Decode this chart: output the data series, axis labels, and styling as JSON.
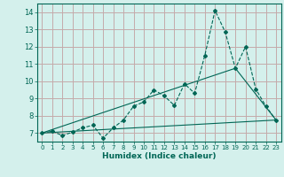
{
  "xlabel": "Humidex (Indice chaleur)",
  "bg_color": "#d4f0ec",
  "grid_color": "#c4aaaa",
  "line_color": "#006655",
  "xlim": [
    -0.5,
    23.5
  ],
  "ylim": [
    6.5,
    14.5
  ],
  "xticks": [
    0,
    1,
    2,
    3,
    4,
    5,
    6,
    7,
    8,
    9,
    10,
    11,
    12,
    13,
    14,
    15,
    16,
    17,
    18,
    19,
    20,
    21,
    22,
    23
  ],
  "yticks": [
    7,
    8,
    9,
    10,
    11,
    12,
    13,
    14
  ],
  "line1_x": [
    0,
    1,
    2,
    3,
    4,
    5,
    6,
    7,
    8,
    9,
    10,
    11,
    12,
    13,
    14,
    15,
    16,
    17,
    18,
    19,
    20,
    21,
    22,
    23
  ],
  "line1_y": [
    7.0,
    7.1,
    6.85,
    7.05,
    7.3,
    7.45,
    6.7,
    7.3,
    7.75,
    8.55,
    8.8,
    9.5,
    9.15,
    8.6,
    9.85,
    9.3,
    11.5,
    14.1,
    12.85,
    10.75,
    12.0,
    9.55,
    8.55,
    7.75
  ],
  "trend1_x": [
    0,
    23
  ],
  "trend1_y": [
    7.0,
    7.75
  ],
  "trend2_x": [
    0,
    19,
    23
  ],
  "trend2_y": [
    7.0,
    10.75,
    7.75
  ]
}
